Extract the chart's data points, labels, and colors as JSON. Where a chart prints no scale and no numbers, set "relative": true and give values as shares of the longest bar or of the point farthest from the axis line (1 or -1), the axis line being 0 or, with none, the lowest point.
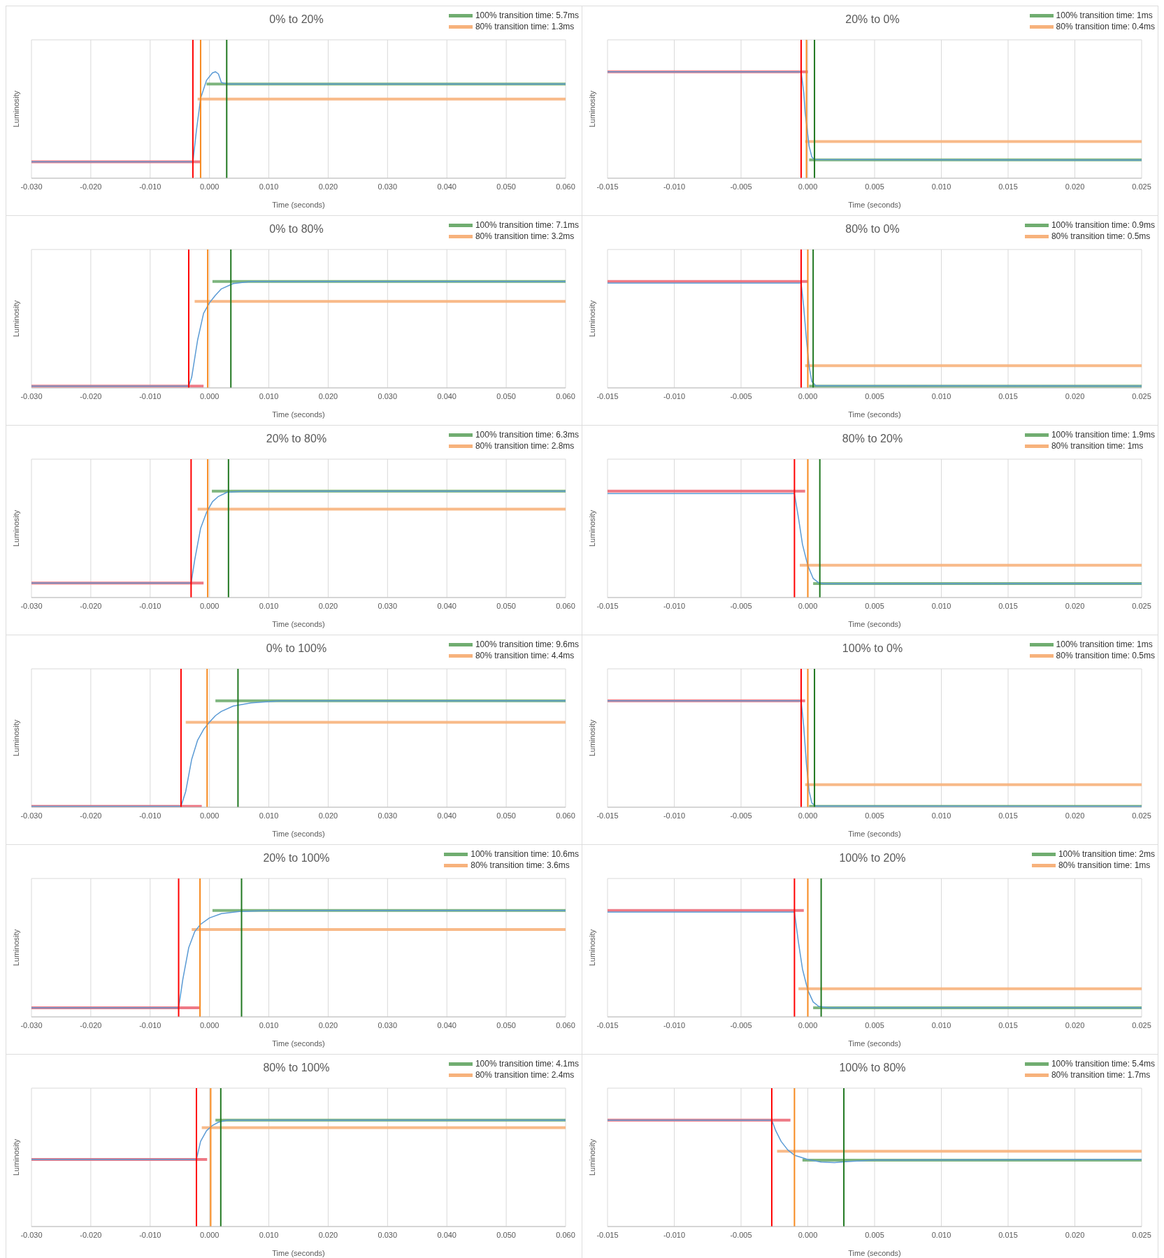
{
  "chart_data": [
    {
      "type": "line",
      "relative": true,
      "title": "0% to 20%",
      "xlabel": "Time (seconds)",
      "ylabel": "Luminosity",
      "xlim": [
        -0.03,
        0.06
      ],
      "xticks": [
        {
          "value": -0.03,
          "label": "-0.030"
        },
        {
          "value": -0.02,
          "label": "-0.020"
        },
        {
          "value": -0.01,
          "label": "-0.010"
        },
        {
          "value": 0,
          "label": "0.000"
        },
        {
          "value": 0.01,
          "label": "0.010"
        },
        {
          "value": 0.02,
          "label": "0.020"
        },
        {
          "value": 0.03,
          "label": "0.030"
        },
        {
          "value": 0.04,
          "label": "0.040"
        },
        {
          "value": 0.05,
          "label": "0.050"
        },
        {
          "value": 0.06,
          "label": "0.060"
        }
      ],
      "grid": true,
      "legend": "top right",
      "tick_labels": "x",
      "series": [
        {
          "color": "#ec6a78",
          "x": [
            -0.03,
            -0.0015
          ],
          "values": [
            0.154,
            0.154
          ]
        },
        {
          "name": "100% transition time: 5.7ms",
          "color": "#70ad70",
          "x": [
            -0.0005,
            0.06
          ],
          "values": [
            0.885,
            0.885
          ]
        },
        {
          "name": "80% transition time: 1.3ms",
          "color": "#f7b27c",
          "x": [
            -0.002,
            0.06
          ],
          "values": [
            0.744,
            0.744
          ]
        },
        {
          "color": "#5b9bd5",
          "x": [
            -0.03,
            -0.0028,
            -0.0022,
            -0.0015,
            -0.0005,
            0.0005,
            0.001,
            0.0015,
            0.002,
            0.003,
            0.06
          ],
          "values": [
            0.154,
            0.154,
            0.45,
            0.75,
            0.92,
            0.99,
            1,
            0.98,
            0.9,
            0.885,
            0.885
          ]
        }
      ],
      "ref_lines": [
        {
          "axis": "x",
          "value": -0.0028,
          "color": "#ff0000"
        },
        {
          "axis": "x",
          "value": -0.0015,
          "color": "#f7891f"
        },
        {
          "axis": "x",
          "value": 0.0029,
          "color": "#217821"
        }
      ]
    },
    {
      "type": "line",
      "relative": true,
      "title": "20% to 0%",
      "xlabel": "Time (seconds)",
      "ylabel": "Luminosity",
      "xlim": [
        -0.015,
        0.025
      ],
      "xticks": [
        {
          "value": -0.015,
          "label": "-0.015"
        },
        {
          "value": -0.01,
          "label": "-0.010"
        },
        {
          "value": -0.005,
          "label": "-0.005"
        },
        {
          "value": 0,
          "label": "0.000"
        },
        {
          "value": 0.005,
          "label": "0.005"
        },
        {
          "value": 0.01,
          "label": "0.010"
        },
        {
          "value": 0.015,
          "label": "0.015"
        },
        {
          "value": 0.02,
          "label": "0.020"
        },
        {
          "value": 0.025,
          "label": "0.025"
        }
      ],
      "grid": true,
      "legend": "top right",
      "tick_labels": "x",
      "series": [
        {
          "color": "#ec6a78",
          "x": [
            -0.015,
            0
          ],
          "values": [
            1,
            1
          ]
        },
        {
          "name": "100% transition time: 1ms",
          "color": "#70ad70",
          "x": [
            0.0001,
            0.025
          ],
          "values": [
            0.173,
            0.173
          ]
        },
        {
          "name": "80% transition time: 0.4ms",
          "color": "#f7b27c",
          "x": [
            -0.0002,
            0.025
          ],
          "values": [
            0.344,
            0.344
          ]
        },
        {
          "color": "#5b9bd5",
          "x": [
            -0.015,
            -0.0005,
            -0.0003,
            -0.0002,
            0.0001,
            0.0003,
            0.0005,
            0.025
          ],
          "values": [
            1,
            1,
            0.8,
            0.62,
            0.3,
            0.2,
            0.175,
            0.17
          ]
        }
      ],
      "ref_lines": [
        {
          "axis": "x",
          "value": -0.0005,
          "color": "#ff0000"
        },
        {
          "axis": "x",
          "value": -0.0001,
          "color": "#f7891f"
        },
        {
          "axis": "x",
          "value": 0.0005,
          "color": "#217821"
        }
      ]
    },
    {
      "type": "line",
      "relative": true,
      "title": "0% to 80%",
      "xlabel": "Time (seconds)",
      "ylabel": "Luminosity",
      "xlim": [
        -0.03,
        0.06
      ],
      "xticks": [
        {
          "value": -0.03,
          "label": "-0.030"
        },
        {
          "value": -0.02,
          "label": "-0.020"
        },
        {
          "value": -0.01,
          "label": "-0.010"
        },
        {
          "value": 0,
          "label": "0.000"
        },
        {
          "value": 0.01,
          "label": "0.010"
        },
        {
          "value": 0.02,
          "label": "0.020"
        },
        {
          "value": 0.03,
          "label": "0.030"
        },
        {
          "value": 0.04,
          "label": "0.040"
        },
        {
          "value": 0.05,
          "label": "0.050"
        },
        {
          "value": 0.06,
          "label": "0.060"
        }
      ],
      "grid": true,
      "legend": "top right",
      "tick_labels": "x",
      "series": [
        {
          "color": "#ec6a78",
          "x": [
            -0.03,
            -0.001
          ],
          "values": [
            0.017,
            0.017
          ]
        },
        {
          "name": "100% transition time: 7.1ms",
          "color": "#70ad70",
          "x": [
            0.0005,
            0.06
          ],
          "values": [
            1,
            1
          ]
        },
        {
          "name": "80% transition time: 3.2ms",
          "color": "#f7b27c",
          "x": [
            -0.0025,
            0.06
          ],
          "values": [
            0.813,
            0.813
          ]
        },
        {
          "color": "#5b9bd5",
          "x": [
            -0.03,
            -0.0035,
            -0.003,
            -0.002,
            -0.001,
            0,
            0.001,
            0.002,
            0.004,
            0.007,
            0.06
          ],
          "values": [
            0.017,
            0.017,
            0.1,
            0.45,
            0.7,
            0.8,
            0.87,
            0.93,
            0.98,
            1,
            1
          ]
        }
      ],
      "ref_lines": [
        {
          "axis": "x",
          "value": -0.0035,
          "color": "#ff0000"
        },
        {
          "axis": "x",
          "value": -0.0003,
          "color": "#f7891f"
        },
        {
          "axis": "x",
          "value": 0.0036,
          "color": "#217821"
        }
      ]
    },
    {
      "type": "line",
      "relative": true,
      "title": "80% to 0%",
      "xlabel": "Time (seconds)",
      "ylabel": "Luminosity",
      "xlim": [
        -0.015,
        0.025
      ],
      "xticks": [
        {
          "value": -0.015,
          "label": "-0.015"
        },
        {
          "value": -0.01,
          "label": "-0.010"
        },
        {
          "value": -0.005,
          "label": "-0.005"
        },
        {
          "value": 0,
          "label": "0.000"
        },
        {
          "value": 0.005,
          "label": "0.005"
        },
        {
          "value": 0.01,
          "label": "0.010"
        },
        {
          "value": 0.015,
          "label": "0.015"
        },
        {
          "value": 0.02,
          "label": "0.020"
        },
        {
          "value": 0.025,
          "label": "0.025"
        }
      ],
      "grid": true,
      "legend": "top right",
      "tick_labels": "x",
      "series": [
        {
          "color": "#ec6a78",
          "x": [
            -0.015,
            0
          ],
          "values": [
            1,
            1
          ]
        },
        {
          "name": "100% transition time: 0.9ms",
          "color": "#70ad70",
          "x": [
            0.0001,
            0.025
          ],
          "values": [
            0.017,
            0.017
          ]
        },
        {
          "name": "80% transition time: 0.5ms",
          "color": "#f7b27c",
          "x": [
            -0.0002,
            0.025
          ],
          "values": [
            0.209,
            0.209
          ]
        },
        {
          "color": "#5b9bd5",
          "x": [
            -0.015,
            -0.0005,
            -0.0003,
            -0.0001,
            0.0001,
            0.0003,
            0.0006,
            0.025
          ],
          "values": [
            0.985,
            0.985,
            0.75,
            0.45,
            0.2,
            0.06,
            0.02,
            0.017
          ]
        }
      ],
      "ref_lines": [
        {
          "axis": "x",
          "value": -0.0005,
          "color": "#ff0000"
        },
        {
          "axis": "x",
          "value": 0,
          "color": "#f7891f"
        },
        {
          "axis": "x",
          "value": 0.0004,
          "color": "#217821"
        }
      ]
    },
    {
      "type": "line",
      "relative": true,
      "title": "20% to 80%",
      "xlabel": "Time (seconds)",
      "ylabel": "Luminosity",
      "xlim": [
        -0.03,
        0.06
      ],
      "xticks": [
        {
          "value": -0.03,
          "label": "-0.030"
        },
        {
          "value": -0.02,
          "label": "-0.020"
        },
        {
          "value": -0.01,
          "label": "-0.010"
        },
        {
          "value": 0,
          "label": "0.000"
        },
        {
          "value": 0.01,
          "label": "0.010"
        },
        {
          "value": 0.02,
          "label": "0.020"
        },
        {
          "value": 0.03,
          "label": "0.030"
        },
        {
          "value": 0.04,
          "label": "0.040"
        },
        {
          "value": 0.05,
          "label": "0.050"
        },
        {
          "value": 0.06,
          "label": "0.060"
        }
      ],
      "grid": true,
      "legend": "top right",
      "tick_labels": "x",
      "series": [
        {
          "color": "#ec6a78",
          "x": [
            -0.03,
            -0.001
          ],
          "values": [
            0.136,
            0.136
          ]
        },
        {
          "name": "100% transition time: 6.3ms",
          "color": "#70ad70",
          "x": [
            0.0004,
            0.06
          ],
          "values": [
            1,
            1
          ]
        },
        {
          "name": "80% transition time: 2.8ms",
          "color": "#f7b27c",
          "x": [
            -0.002,
            0.06
          ],
          "values": [
            0.831,
            0.831
          ]
        },
        {
          "color": "#5b9bd5",
          "x": [
            -0.03,
            -0.0031,
            -0.0025,
            -0.0015,
            -0.0005,
            0.0005,
            0.0015,
            0.003,
            0.006,
            0.06
          ],
          "values": [
            0.136,
            0.136,
            0.35,
            0.65,
            0.8,
            0.9,
            0.95,
            0.99,
            1,
            1
          ]
        }
      ],
      "ref_lines": [
        {
          "axis": "x",
          "value": -0.0031,
          "color": "#ff0000"
        },
        {
          "axis": "x",
          "value": -0.0003,
          "color": "#f7891f"
        },
        {
          "axis": "x",
          "value": 0.0032,
          "color": "#217821"
        }
      ]
    },
    {
      "type": "line",
      "relative": true,
      "title": "80% to 20%",
      "xlabel": "Time (seconds)",
      "ylabel": "Luminosity",
      "xlim": [
        -0.015,
        0.025
      ],
      "xticks": [
        {
          "value": -0.015,
          "label": "-0.015"
        },
        {
          "value": -0.01,
          "label": "-0.010"
        },
        {
          "value": -0.005,
          "label": "-0.005"
        },
        {
          "value": 0,
          "label": "0.000"
        },
        {
          "value": 0.005,
          "label": "0.005"
        },
        {
          "value": 0.01,
          "label": "0.010"
        },
        {
          "value": 0.015,
          "label": "0.015"
        },
        {
          "value": 0.02,
          "label": "0.020"
        },
        {
          "value": 0.025,
          "label": "0.025"
        }
      ],
      "grid": true,
      "legend": "top right",
      "tick_labels": "x",
      "series": [
        {
          "color": "#ec6a78",
          "x": [
            -0.015,
            -0.0002
          ],
          "values": [
            1,
            1
          ]
        },
        {
          "name": "100% transition time: 1.9ms",
          "color": "#70ad70",
          "x": [
            0.0004,
            0.025
          ],
          "values": [
            0.131,
            0.131
          ]
        },
        {
          "name": "80% transition time: 1ms",
          "color": "#f7b27c",
          "x": [
            -0.0006,
            0.025
          ],
          "values": [
            0.303,
            0.303
          ]
        },
        {
          "color": "#5b9bd5",
          "x": [
            -0.015,
            -0.001,
            -0.0007,
            -0.0004,
            0,
            0.0004,
            0.0008,
            0.0012,
            0.025
          ],
          "values": [
            0.976,
            0.976,
            0.75,
            0.5,
            0.3,
            0.18,
            0.14,
            0.13,
            0.131
          ]
        }
      ],
      "ref_lines": [
        {
          "axis": "x",
          "value": -0.001,
          "color": "#ff0000"
        },
        {
          "axis": "x",
          "value": 0,
          "color": "#f7891f"
        },
        {
          "axis": "x",
          "value": 0.0009,
          "color": "#217821"
        }
      ]
    },
    {
      "type": "line",
      "relative": true,
      "title": "0% to 100%",
      "xlabel": "Time (seconds)",
      "ylabel": "Luminosity",
      "xlim": [
        -0.03,
        0.06
      ],
      "xticks": [
        {
          "value": -0.03,
          "label": "-0.030"
        },
        {
          "value": -0.02,
          "label": "-0.020"
        },
        {
          "value": -0.01,
          "label": "-0.010"
        },
        {
          "value": 0,
          "label": "0.000"
        },
        {
          "value": 0.01,
          "label": "0.010"
        },
        {
          "value": 0.02,
          "label": "0.020"
        },
        {
          "value": 0.03,
          "label": "0.030"
        },
        {
          "value": 0.04,
          "label": "0.040"
        },
        {
          "value": 0.05,
          "label": "0.050"
        },
        {
          "value": 0.06,
          "label": "0.060"
        }
      ],
      "grid": true,
      "legend": "top right",
      "tick_labels": "x",
      "series": [
        {
          "color": "#ec6a78",
          "x": [
            -0.03,
            -0.0013
          ],
          "values": [
            0.008,
            0.008
          ]
        },
        {
          "name": "100% transition time: 9.6ms",
          "color": "#70ad70",
          "x": [
            0.001,
            0.06
          ],
          "values": [
            1,
            1
          ]
        },
        {
          "name": "80% transition time: 4.4ms",
          "color": "#f7b27c",
          "x": [
            -0.004,
            0.06
          ],
          "values": [
            0.797,
            0.797
          ]
        },
        {
          "color": "#5b9bd5",
          "x": [
            -0.03,
            -0.0048,
            -0.004,
            -0.003,
            -0.002,
            -0.001,
            0,
            0.001,
            0.002,
            0.004,
            0.007,
            0.012,
            0.06
          ],
          "values": [
            0.008,
            0.008,
            0.15,
            0.45,
            0.63,
            0.73,
            0.8,
            0.86,
            0.9,
            0.95,
            0.98,
            1,
            1
          ]
        }
      ],
      "ref_lines": [
        {
          "axis": "x",
          "value": -0.0048,
          "color": "#ff0000"
        },
        {
          "axis": "x",
          "value": -0.0004,
          "color": "#f7891f"
        },
        {
          "axis": "x",
          "value": 0.0048,
          "color": "#217821"
        }
      ]
    },
    {
      "type": "line",
      "relative": true,
      "title": "100% to 0%",
      "xlabel": "Time (seconds)",
      "ylabel": "Luminosity",
      "xlim": [
        -0.015,
        0.025
      ],
      "xticks": [
        {
          "value": -0.015,
          "label": "-0.015"
        },
        {
          "value": -0.01,
          "label": "-0.010"
        },
        {
          "value": -0.005,
          "label": "-0.005"
        },
        {
          "value": 0,
          "label": "0.000"
        },
        {
          "value": 0.005,
          "label": "0.005"
        },
        {
          "value": 0.01,
          "label": "0.010"
        },
        {
          "value": 0.015,
          "label": "0.015"
        },
        {
          "value": 0.02,
          "label": "0.020"
        },
        {
          "value": 0.025,
          "label": "0.025"
        }
      ],
      "grid": true,
      "legend": "top right",
      "tick_labels": "x",
      "series": [
        {
          "color": "#ec6a78",
          "x": [
            -0.015,
            -0.0002
          ],
          "values": [
            1,
            1
          ]
        },
        {
          "name": "100% transition time: 1ms",
          "color": "#70ad70",
          "x": [
            0.0001,
            0.025
          ],
          "values": [
            0.008,
            0.008
          ]
        },
        {
          "name": "80% transition time: 0.5ms",
          "color": "#f7b27c",
          "x": [
            -0.0002,
            0.025
          ],
          "values": [
            0.211,
            0.211
          ]
        },
        {
          "color": "#5b9bd5",
          "x": [
            -0.015,
            -0.0005,
            -0.0003,
            -0.0001,
            0.0001,
            0.0003,
            0.0006,
            0.025
          ],
          "values": [
            1,
            1,
            0.75,
            0.4,
            0.15,
            0.04,
            0.01,
            0.008
          ]
        }
      ],
      "ref_lines": [
        {
          "axis": "x",
          "value": -0.0005,
          "color": "#ff0000"
        },
        {
          "axis": "x",
          "value": 0,
          "color": "#f7891f"
        },
        {
          "axis": "x",
          "value": 0.0005,
          "color": "#217821"
        }
      ]
    },
    {
      "type": "line",
      "relative": true,
      "title": "20% to 100%",
      "xlabel": "Time (seconds)",
      "ylabel": "Luminosity",
      "xlim": [
        -0.03,
        0.06
      ],
      "xticks": [
        {
          "value": -0.03,
          "label": "-0.030"
        },
        {
          "value": -0.02,
          "label": "-0.020"
        },
        {
          "value": -0.01,
          "label": "-0.010"
        },
        {
          "value": 0,
          "label": "0.000"
        },
        {
          "value": 0.01,
          "label": "0.010"
        },
        {
          "value": 0.02,
          "label": "0.020"
        },
        {
          "value": 0.03,
          "label": "0.030"
        },
        {
          "value": 0.04,
          "label": "0.040"
        },
        {
          "value": 0.05,
          "label": "0.050"
        },
        {
          "value": 0.06,
          "label": "0.060"
        }
      ],
      "grid": true,
      "legend": "top right",
      "tick_labels": "x",
      "series": [
        {
          "color": "#ec6a78",
          "x": [
            -0.03,
            -0.0017
          ],
          "values": [
            0.086,
            0.086
          ]
        },
        {
          "name": "100% transition time: 10.6ms",
          "color": "#70ad70",
          "x": [
            0.0005,
            0.06
          ],
          "values": [
            1,
            1
          ]
        },
        {
          "name": "80% transition time: 3.6ms",
          "color": "#f7b27c",
          "x": [
            -0.003,
            0.06
          ],
          "values": [
            0.82,
            0.82
          ]
        },
        {
          "color": "#5b9bd5",
          "x": [
            -0.03,
            -0.0052,
            -0.0045,
            -0.0035,
            -0.0025,
            -0.0015,
            0,
            0.002,
            0.005,
            0.01,
            0.06
          ],
          "values": [
            0.086,
            0.086,
            0.35,
            0.65,
            0.8,
            0.87,
            0.93,
            0.97,
            0.99,
            1,
            1
          ]
        }
      ],
      "ref_lines": [
        {
          "axis": "x",
          "value": -0.0052,
          "color": "#ff0000"
        },
        {
          "axis": "x",
          "value": -0.0016,
          "color": "#f7891f"
        },
        {
          "axis": "x",
          "value": 0.0054,
          "color": "#217821"
        }
      ]
    },
    {
      "type": "line",
      "relative": true,
      "title": "100% to 20%",
      "xlabel": "Time (seconds)",
      "ylabel": "Luminosity",
      "xlim": [
        -0.015,
        0.025
      ],
      "xticks": [
        {
          "value": -0.015,
          "label": "-0.015"
        },
        {
          "value": -0.01,
          "label": "-0.010"
        },
        {
          "value": -0.005,
          "label": "-0.005"
        },
        {
          "value": 0,
          "label": "0.000"
        },
        {
          "value": 0.005,
          "label": "0.005"
        },
        {
          "value": 0.01,
          "label": "0.010"
        },
        {
          "value": 0.015,
          "label": "0.015"
        },
        {
          "value": 0.02,
          "label": "0.020"
        },
        {
          "value": 0.025,
          "label": "0.025"
        }
      ],
      "grid": true,
      "legend": "top right",
      "tick_labels": "x",
      "series": [
        {
          "color": "#ec6a78",
          "x": [
            -0.015,
            -0.0003
          ],
          "values": [
            1,
            1
          ]
        },
        {
          "name": "100% transition time: 2ms",
          "color": "#70ad70",
          "x": [
            0.0004,
            0.025
          ],
          "values": [
            0.085,
            0.085
          ]
        },
        {
          "name": "80% transition time: 1ms",
          "color": "#f7b27c",
          "x": [
            -0.0007,
            0.025
          ],
          "values": [
            0.264,
            0.264
          ]
        },
        {
          "color": "#5b9bd5",
          "x": [
            -0.015,
            -0.001,
            -0.0007,
            -0.0004,
            0,
            0.0004,
            0.0008,
            0.0015,
            0.025
          ],
          "values": [
            0.985,
            0.985,
            0.7,
            0.45,
            0.25,
            0.14,
            0.1,
            0.085,
            0.085
          ]
        }
      ],
      "ref_lines": [
        {
          "axis": "x",
          "value": -0.001,
          "color": "#ff0000"
        },
        {
          "axis": "x",
          "value": 0,
          "color": "#f7891f"
        },
        {
          "axis": "x",
          "value": 0.001,
          "color": "#217821"
        }
      ]
    },
    {
      "type": "line",
      "relative": true,
      "title": "80% to 100%",
      "xlabel": "Time (seconds)",
      "ylabel": "Luminosity",
      "xlim": [
        -0.03,
        0.06
      ],
      "xticks": [
        {
          "value": -0.03,
          "label": "-0.030"
        },
        {
          "value": -0.02,
          "label": "-0.020"
        },
        {
          "value": -0.01,
          "label": "-0.010"
        },
        {
          "value": 0,
          "label": "0.000"
        },
        {
          "value": 0.01,
          "label": "0.010"
        },
        {
          "value": 0.02,
          "label": "0.020"
        },
        {
          "value": 0.03,
          "label": "0.030"
        },
        {
          "value": 0.04,
          "label": "0.040"
        },
        {
          "value": 0.05,
          "label": "0.050"
        },
        {
          "value": 0.06,
          "label": "0.060"
        }
      ],
      "grid": true,
      "legend": "top right",
      "tick_labels": "x",
      "series": [
        {
          "color": "#ec6a78",
          "x": [
            -0.03,
            -0.0004
          ],
          "values": [
            0.63,
            0.63
          ]
        },
        {
          "name": "100% transition time: 4.1ms",
          "color": "#70ad70",
          "x": [
            0.001,
            0.06
          ],
          "values": [
            1,
            1
          ]
        },
        {
          "name": "80% transition time: 2.4ms",
          "color": "#f7b27c",
          "x": [
            -0.0013,
            0.06
          ],
          "values": [
            0.929,
            0.929
          ]
        },
        {
          "color": "#5b9bd5",
          "x": [
            -0.03,
            -0.0022,
            -0.0015,
            -0.0005,
            0.0005,
            0.0015,
            0.003,
            0.06
          ],
          "values": [
            0.63,
            0.63,
            0.8,
            0.9,
            0.95,
            0.98,
            1,
            1
          ]
        }
      ],
      "ref_lines": [
        {
          "axis": "x",
          "value": -0.0022,
          "color": "#ff0000"
        },
        {
          "axis": "x",
          "value": 0.0002,
          "color": "#f7891f"
        },
        {
          "axis": "x",
          "value": 0.0019,
          "color": "#217821"
        }
      ]
    },
    {
      "type": "line",
      "relative": true,
      "title": "100% to 80%",
      "xlabel": "Time (seconds)",
      "ylabel": "Luminosity",
      "xlim": [
        -0.015,
        0.025
      ],
      "xticks": [
        {
          "value": -0.015,
          "label": "-0.015"
        },
        {
          "value": -0.01,
          "label": "-0.010"
        },
        {
          "value": -0.005,
          "label": "-0.005"
        },
        {
          "value": 0,
          "label": "0.000"
        },
        {
          "value": 0.005,
          "label": "0.005"
        },
        {
          "value": 0.01,
          "label": "0.010"
        },
        {
          "value": 0.015,
          "label": "0.015"
        },
        {
          "value": 0.02,
          "label": "0.020"
        },
        {
          "value": 0.025,
          "label": "0.025"
        }
      ],
      "grid": true,
      "legend": "top right",
      "tick_labels": "x",
      "series": [
        {
          "color": "#ec6a78",
          "x": [
            -0.015,
            -0.0013
          ],
          "values": [
            1,
            1
          ]
        },
        {
          "name": "100% transition time: 5.4ms",
          "color": "#70ad70",
          "x": [
            -0.0004,
            0.025
          ],
          "values": [
            0.623,
            0.623
          ]
        },
        {
          "name": "80% transition time: 1.7ms",
          "color": "#f7b27c",
          "x": [
            -0.0023,
            0.025
          ],
          "values": [
            0.708,
            0.708
          ]
        },
        {
          "color": "#5b9bd5",
          "x": [
            -0.015,
            -0.0027,
            -0.0024,
            -0.002,
            -0.0015,
            -0.001,
            0,
            0.001,
            0.002,
            0.003,
            0.005,
            0.025
          ],
          "values": [
            1,
            1,
            0.9,
            0.8,
            0.72,
            0.67,
            0.63,
            0.605,
            0.6,
            0.61,
            0.625,
            0.63
          ]
        }
      ],
      "ref_lines": [
        {
          "axis": "x",
          "value": -0.0027,
          "color": "#ff0000"
        },
        {
          "axis": "x",
          "value": -0.001,
          "color": "#f7891f"
        },
        {
          "axis": "x",
          "value": 0.0027,
          "color": "#217821"
        }
      ]
    }
  ]
}
